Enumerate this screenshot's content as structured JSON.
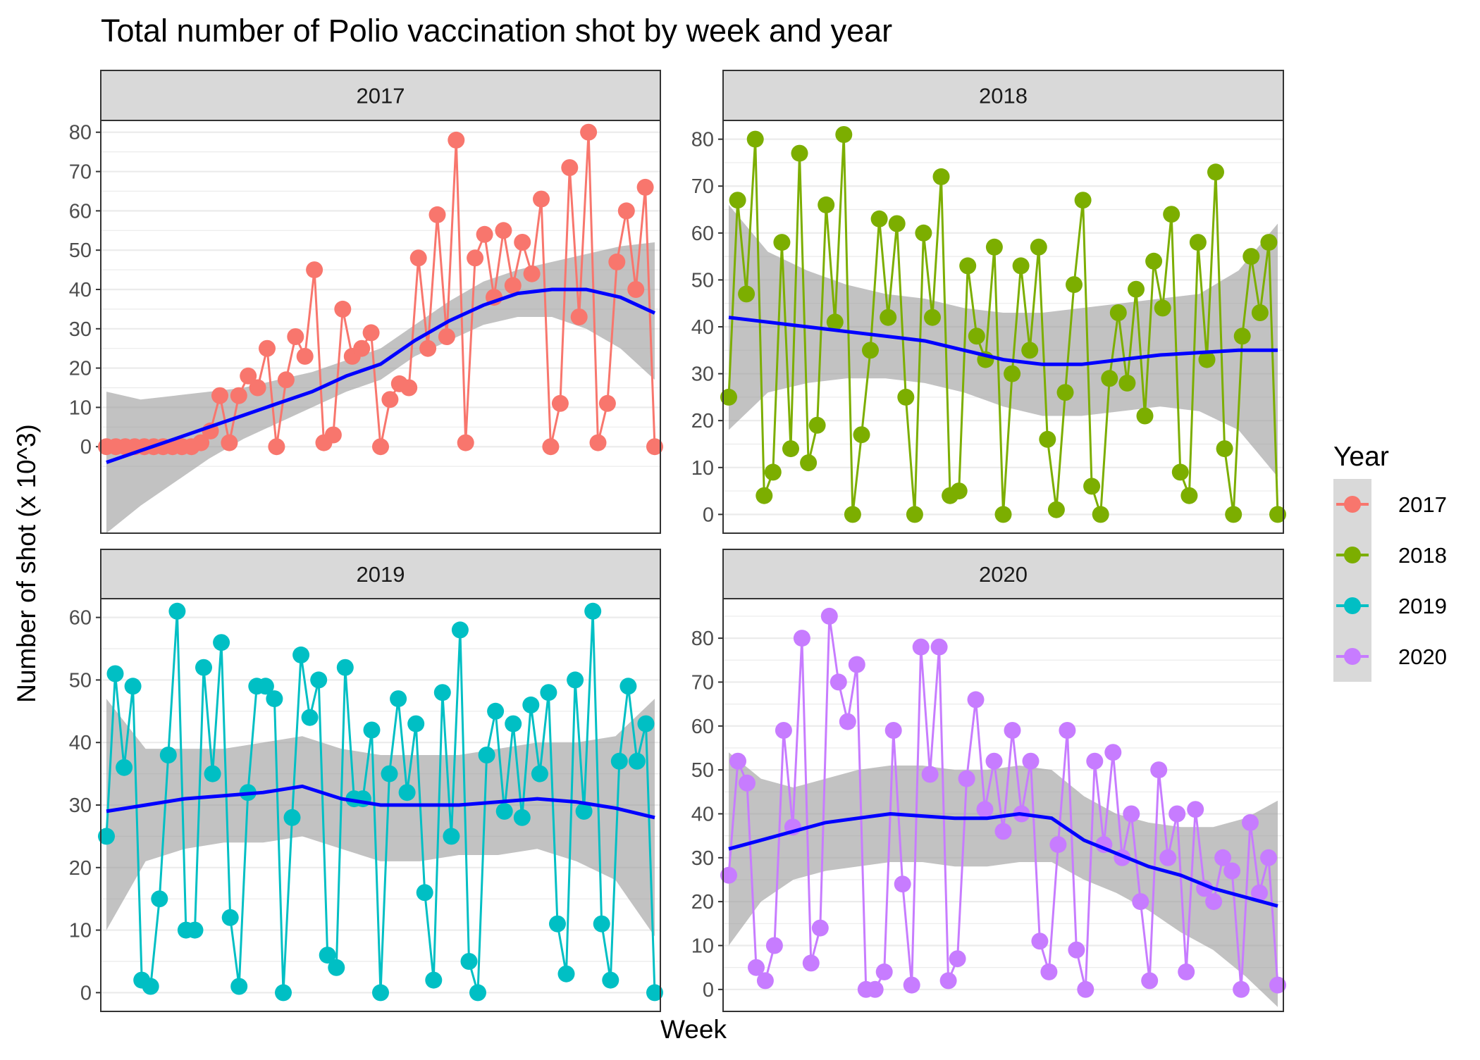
{
  "chart_data": {
    "type": "line",
    "title": "Total number of Polio vaccination shot by week and year",
    "xlabel": "Week",
    "ylabel": "Number of shot (x 10^3)",
    "legend": {
      "title": "Year",
      "position": "right",
      "entries": [
        "2017",
        "2018",
        "2019",
        "2020"
      ]
    },
    "grid": true,
    "smoother": {
      "color": "#0000FF",
      "band_color": "#999999",
      "method": "loess with confidence band"
    },
    "panels": [
      {
        "label": "2017",
        "color": "#F8766D",
        "ylim": [
          -22,
          83
        ],
        "yticks": [
          0,
          10,
          20,
          30,
          40,
          50,
          60,
          70,
          80
        ],
        "values": [
          0,
          0,
          0,
          0,
          0,
          0,
          0,
          0,
          0,
          0,
          1,
          4,
          13,
          1,
          13,
          18,
          15,
          25,
          0,
          17,
          28,
          23,
          45,
          1,
          3,
          35,
          23,
          25,
          29,
          0,
          12,
          16,
          15,
          48,
          25,
          59,
          28,
          78,
          1,
          48,
          54,
          38,
          55,
          41,
          52,
          44,
          63,
          0,
          11,
          71,
          33,
          80,
          1,
          11,
          47,
          60,
          40,
          66,
          0
        ],
        "trend": [
          -4,
          -1,
          2,
          5,
          8,
          11,
          14,
          18,
          21,
          27,
          32,
          36,
          39,
          40,
          40,
          38,
          34
        ],
        "band_low": [
          -22,
          -15,
          -9,
          -3,
          2,
          6,
          10,
          14,
          17,
          23,
          27,
          31,
          33,
          33,
          30,
          25,
          17
        ],
        "band_high": [
          14,
          12,
          13,
          14,
          15,
          17,
          19,
          22,
          25,
          31,
          37,
          42,
          45,
          47,
          49,
          51,
          52
        ]
      },
      {
        "label": "2018",
        "color": "#7CAE00",
        "ylim": [
          -4,
          84
        ],
        "yticks": [
          0,
          10,
          20,
          30,
          40,
          50,
          60,
          70,
          80
        ],
        "values": [
          25,
          67,
          47,
          80,
          4,
          9,
          58,
          14,
          77,
          11,
          19,
          66,
          41,
          81,
          0,
          17,
          35,
          63,
          42,
          62,
          25,
          0,
          60,
          42,
          72,
          4,
          5,
          53,
          38,
          33,
          57,
          0,
          30,
          53,
          35,
          57,
          16,
          1,
          26,
          49,
          67,
          6,
          0,
          29,
          43,
          28,
          48,
          21,
          54,
          44,
          64,
          9,
          4,
          58,
          33,
          73,
          14,
          0,
          38,
          55,
          43,
          58,
          0
        ],
        "trend": [
          42,
          41,
          40,
          39,
          38,
          37,
          35,
          33,
          32,
          32,
          33,
          34,
          34.5,
          35,
          35
        ],
        "band_low": [
          18,
          26,
          28,
          29,
          29,
          28,
          26,
          23,
          21,
          21,
          22,
          23,
          22,
          18,
          8
        ],
        "band_high": [
          66,
          56,
          52,
          49,
          47,
          46,
          44,
          43,
          43,
          44,
          45,
          46,
          47,
          52,
          62
        ]
      },
      {
        "label": "2019",
        "color": "#00BFC4",
        "ylim": [
          -3,
          63
        ],
        "yticks": [
          0,
          10,
          20,
          30,
          40,
          50,
          60
        ],
        "values": [
          25,
          51,
          36,
          49,
          2,
          1,
          15,
          38,
          61,
          10,
          10,
          52,
          35,
          56,
          12,
          1,
          32,
          49,
          49,
          47,
          0,
          28,
          54,
          44,
          50,
          6,
          4,
          52,
          31,
          31,
          42,
          0,
          35,
          47,
          32,
          43,
          16,
          2,
          48,
          25,
          58,
          5,
          0,
          38,
          45,
          29,
          43,
          28,
          46,
          35,
          48,
          11,
          3,
          50,
          29,
          61,
          11,
          2,
          37,
          49,
          37,
          43,
          0
        ],
        "trend": [
          29,
          30,
          31,
          31.5,
          32,
          33,
          31,
          30,
          30,
          30,
          30.5,
          31,
          30.5,
          29.5,
          28
        ],
        "band_low": [
          10,
          21,
          23,
          24,
          24,
          25,
          23,
          21,
          21,
          22,
          22,
          23,
          21,
          18,
          9
        ],
        "band_high": [
          47,
          39,
          39,
          39,
          40,
          41,
          39,
          38,
          38,
          38,
          39,
          40,
          40,
          41,
          47
        ]
      },
      {
        "label": "2020",
        "color": "#C77CFF",
        "ylim": [
          -5,
          89
        ],
        "yticks": [
          0,
          10,
          20,
          30,
          40,
          50,
          60,
          70,
          80
        ],
        "values": [
          26,
          52,
          47,
          5,
          2,
          10,
          59,
          37,
          80,
          6,
          14,
          85,
          70,
          61,
          74,
          0,
          0,
          4,
          59,
          24,
          1,
          78,
          49,
          78,
          2,
          7,
          48,
          66,
          41,
          52,
          36,
          59,
          40,
          52,
          11,
          4,
          33,
          59,
          9,
          0,
          52,
          33,
          54,
          30,
          40,
          20,
          2,
          50,
          30,
          40,
          4,
          41,
          23,
          20,
          30,
          27,
          0,
          38,
          22,
          30,
          1
        ],
        "trend": [
          32,
          34,
          36,
          38,
          39,
          40,
          39.5,
          39,
          39,
          40,
          39,
          34,
          31,
          28,
          26,
          23,
          21,
          19
        ],
        "band_low": [
          10,
          20,
          25,
          27,
          28,
          29,
          29,
          28,
          28,
          29,
          29,
          25,
          22,
          18,
          13,
          9,
          3,
          -4
        ],
        "band_high": [
          54,
          48,
          46,
          48,
          50,
          51,
          51,
          50,
          50,
          51,
          50,
          44,
          40,
          38,
          37,
          37,
          39,
          43
        ]
      }
    ]
  }
}
